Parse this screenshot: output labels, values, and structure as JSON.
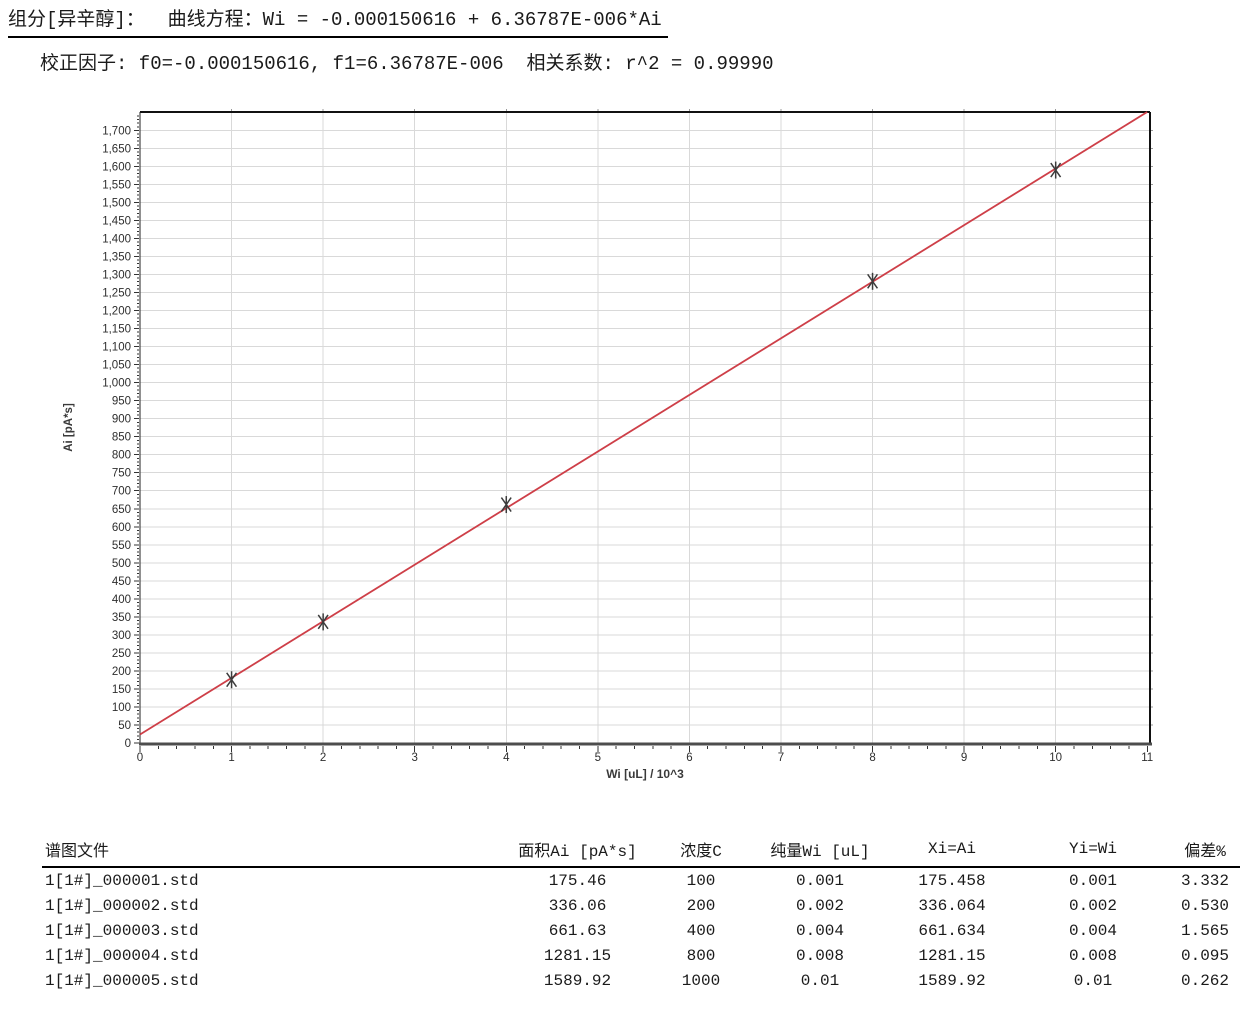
{
  "header": {
    "line1": "组分[异辛醇]：  曲线方程：Wi = -0.000150616 + 6.36787E-006*Ai",
    "line2": "校正因子: f0=-0.000150616, f1=6.36787E-006  相关系数: r^2 = 0.99990"
  },
  "chart_data": {
    "type": "scatter",
    "title": "",
    "xlabel": "Wi [uL] / 10^3",
    "ylabel": "Ai [pA*s]",
    "xlim": [
      0,
      11.03
    ],
    "ylim": [
      0,
      1751
    ],
    "x_tick_labels": [
      "0",
      "1",
      "2",
      "3",
      "4",
      "5",
      "6",
      "7",
      "8",
      "9",
      "10",
      "11"
    ],
    "x_major_tick_step": 1,
    "x_minor_tick_step": 0.2,
    "y_major_tick_step": 50,
    "y_minor_tick_step": 10,
    "y_max_label": 1700,
    "grid": true,
    "grid_color": "#d9d9d9",
    "points": {
      "x": [
        1,
        2,
        4,
        8,
        10
      ],
      "y": [
        175.46,
        336.06,
        661.63,
        1281.15,
        1589.92
      ]
    },
    "fit_line": {
      "equation_display": "Wi = -0.000150616 + 6.36787E-006*Ai",
      "y_intercept": 23.652,
      "slope": 157.046,
      "color": "#ce3f48"
    },
    "marker": {
      "shape": "asterisk",
      "color": "#3c3c3c"
    },
    "legend": "none",
    "r_squared": 0.9999
  },
  "table": {
    "columns": [
      {
        "label": "谱图文件",
        "align": "left"
      },
      {
        "label": "面积Ai [pA*s]",
        "align": "center"
      },
      {
        "label": "浓度C",
        "align": "center"
      },
      {
        "label": "纯量Wi [uL]",
        "align": "center"
      },
      {
        "label": "Xi=Ai",
        "align": "center"
      },
      {
        "label": "Yi=Wi",
        "align": "center"
      },
      {
        "label": "偏差%",
        "align": "center"
      }
    ],
    "rows": [
      [
        "1[1#]_000001.std",
        "175.46",
        "100",
        "0.001",
        "175.458",
        "0.001",
        "3.332"
      ],
      [
        "1[1#]_000002.std",
        "336.06",
        "200",
        "0.002",
        "336.064",
        "0.002",
        "0.530"
      ],
      [
        "1[1#]_000003.std",
        "661.63",
        "400",
        "0.004",
        "661.634",
        "0.004",
        "1.565"
      ],
      [
        "1[1#]_000004.std",
        "1281.15",
        "800",
        "0.008",
        "1281.15",
        "0.008",
        "0.095"
      ],
      [
        "1[1#]_000005.std",
        "1589.92",
        "1000",
        "0.01",
        "1589.92",
        "0.01",
        "0.262"
      ]
    ]
  }
}
